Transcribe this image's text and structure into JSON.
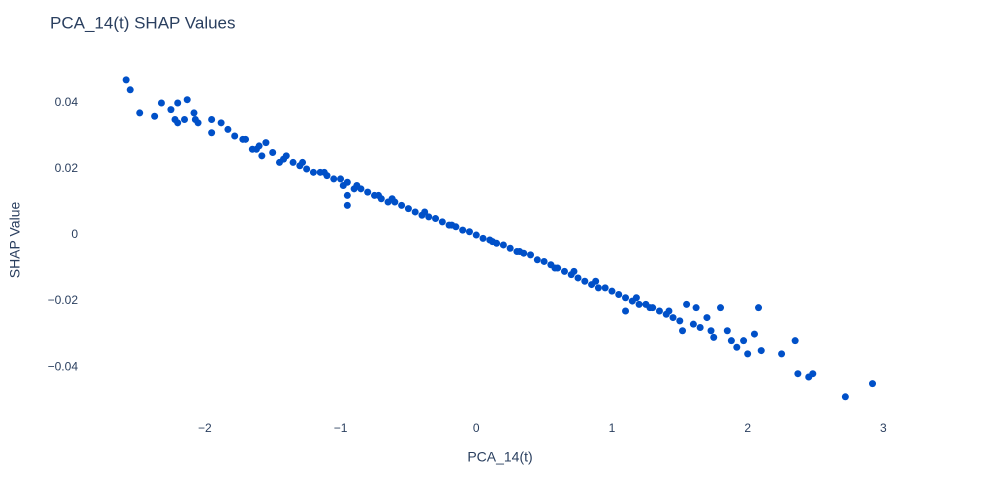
{
  "chart_data": {
    "type": "scatter",
    "title": "PCA_14(t) SHAP Values",
    "x_label": "PCA_14(t)",
    "y_label": "SHAP Value",
    "color": "#0050c8",
    "grid": false,
    "xlim": [
      -2.92,
      3.27
    ],
    "ylim": [
      -0.053,
      0.05
    ],
    "xticks": [
      {
        "value": -2,
        "label": "−2"
      },
      {
        "value": -1,
        "label": "−1"
      },
      0,
      1,
      2,
      3
    ],
    "yticks": [
      {
        "value": -0.04,
        "label": "−0.04"
      },
      {
        "value": -0.02,
        "label": "−0.02"
      },
      0,
      0.02,
      0.04
    ],
    "x": [
      -2.58,
      -2.55,
      -2.48,
      -2.37,
      -2.32,
      -2.25,
      -2.22,
      -2.2,
      -2.2,
      -2.15,
      -2.13,
      -2.08,
      -2.07,
      -2.05,
      -1.95,
      -1.95,
      -1.88,
      -1.83,
      -1.78,
      -1.72,
      -1.7,
      -1.65,
      -1.6,
      -1.58,
      -1.55,
      -1.5,
      -1.45,
      -1.4,
      -1.35,
      -1.3,
      -1.25,
      -1.2,
      -1.15,
      -1.1,
      -1.05,
      -1.0,
      -0.98,
      -0.95,
      -0.95,
      -0.95,
      -0.9,
      -0.85,
      -0.8,
      -0.75,
      -0.7,
      -0.65,
      -0.6,
      -0.55,
      -0.5,
      -0.45,
      -0.4,
      -0.35,
      -0.3,
      -0.25,
      -0.2,
      -0.15,
      -0.1,
      -0.05,
      0,
      0.05,
      0.1,
      0.15,
      0.2,
      0.25,
      0.3,
      0.35,
      0.4,
      0.45,
      0.5,
      0.55,
      0.6,
      0.65,
      0.7,
      0.75,
      0.8,
      0.85,
      0.9,
      0.95,
      1.0,
      1.05,
      1.1,
      1.1,
      1.15,
      1.2,
      1.25,
      1.3,
      1.35,
      1.4,
      1.45,
      1.5,
      1.52,
      1.55,
      1.6,
      1.62,
      1.65,
      1.7,
      1.73,
      1.75,
      1.8,
      1.85,
      1.88,
      1.92,
      1.97,
      2.0,
      2.05,
      2.08,
      2.1,
      2.25,
      2.35,
      2.37,
      2.45,
      2.48,
      2.72,
      2.92,
      -1.62,
      -1.42,
      -1.28,
      -1.12,
      -0.88,
      -0.72,
      -0.62,
      -0.38,
      -0.18,
      0.12,
      0.32,
      0.58,
      0.72,
      0.88,
      1.18,
      1.28,
      1.42
    ],
    "values": [
      0.047,
      0.044,
      0.037,
      0.036,
      0.04,
      0.038,
      0.035,
      0.04,
      0.034,
      0.035,
      0.041,
      0.037,
      0.035,
      0.034,
      0.031,
      0.035,
      0.034,
      0.032,
      0.03,
      0.029,
      0.029,
      0.026,
      0.027,
      0.024,
      0.028,
      0.025,
      0.022,
      0.024,
      0.022,
      0.021,
      0.02,
      0.019,
      0.019,
      0.018,
      0.017,
      0.017,
      0.015,
      0.016,
      0.012,
      0.009,
      0.014,
      0.014,
      0.013,
      0.012,
      0.011,
      0.01,
      0.01,
      0.009,
      0.008,
      0.007,
      0.006,
      0.0055,
      0.005,
      0.004,
      0.003,
      0.0025,
      0.0015,
      0.001,
      0,
      -0.001,
      -0.0015,
      -0.0025,
      -0.003,
      -0.004,
      -0.005,
      -0.0055,
      -0.006,
      -0.0075,
      -0.008,
      -0.009,
      -0.01,
      -0.011,
      -0.012,
      -0.013,
      -0.014,
      -0.015,
      -0.016,
      -0.016,
      -0.017,
      -0.018,
      -0.019,
      -0.023,
      -0.02,
      -0.021,
      -0.021,
      -0.022,
      -0.023,
      -0.024,
      -0.025,
      -0.026,
      -0.029,
      -0.021,
      -0.027,
      -0.022,
      -0.028,
      -0.025,
      -0.029,
      -0.031,
      -0.022,
      -0.029,
      -0.032,
      -0.034,
      -0.032,
      -0.036,
      -0.03,
      -0.022,
      -0.035,
      -0.036,
      -0.032,
      -0.042,
      -0.043,
      -0.042,
      -0.049,
      -0.045,
      0.026,
      0.023,
      0.022,
      0.019,
      0.015,
      0.012,
      0.011,
      0.007,
      0.003,
      -0.002,
      -0.005,
      -0.01,
      -0.011,
      -0.014,
      -0.019,
      -0.022,
      -0.023
    ]
  }
}
